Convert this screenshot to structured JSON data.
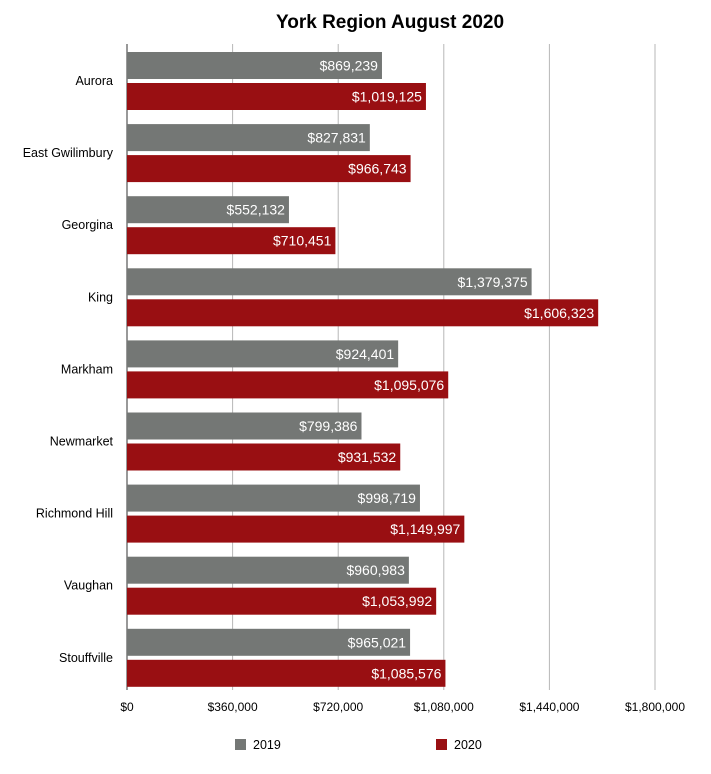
{
  "chart_data": {
    "type": "bar",
    "orientation": "horizontal",
    "title": "York Region August 2020",
    "xlabel": "",
    "ylabel": "",
    "categories": [
      "Aurora",
      "East Gwilimbury",
      "Georgina",
      "King",
      "Markham",
      "Newmarket",
      "Richmond Hill",
      "Vaughan",
      "Stouffville"
    ],
    "series": [
      {
        "name": "2019",
        "color": "#747775",
        "values": [
          869239,
          827831,
          552132,
          1379375,
          924401,
          799386,
          998719,
          960983,
          965021
        ],
        "labels": [
          "$869,239",
          "$827,831",
          "$552,132",
          "$1,379,375",
          "$924,401",
          "$799,386",
          "$998,719",
          "$960,983",
          "$965,021"
        ]
      },
      {
        "name": "2020",
        "color": "#990f12",
        "values": [
          1019125,
          966743,
          710451,
          1606323,
          1095076,
          931532,
          1149997,
          1053992,
          1085576
        ],
        "labels": [
          "$1,019,125",
          "$966,743",
          "$710,451",
          "$1,606,323",
          "$1,095,076",
          "$931,532",
          "$1,149,997",
          "$1,053,992",
          "$1,085,576"
        ]
      }
    ],
    "xlim": [
      0,
      1800000
    ],
    "x_ticks": [
      0,
      360000,
      720000,
      1080000,
      1440000,
      1800000
    ],
    "x_tick_labels": [
      "$0",
      "$360,000",
      "$720,000",
      "$1,080,000",
      "$1,440,000",
      "$1,800,000"
    ],
    "grid": true,
    "legend_position": "bottom",
    "gridline_color": "#b7b7b7",
    "axis_color": "#333333"
  }
}
